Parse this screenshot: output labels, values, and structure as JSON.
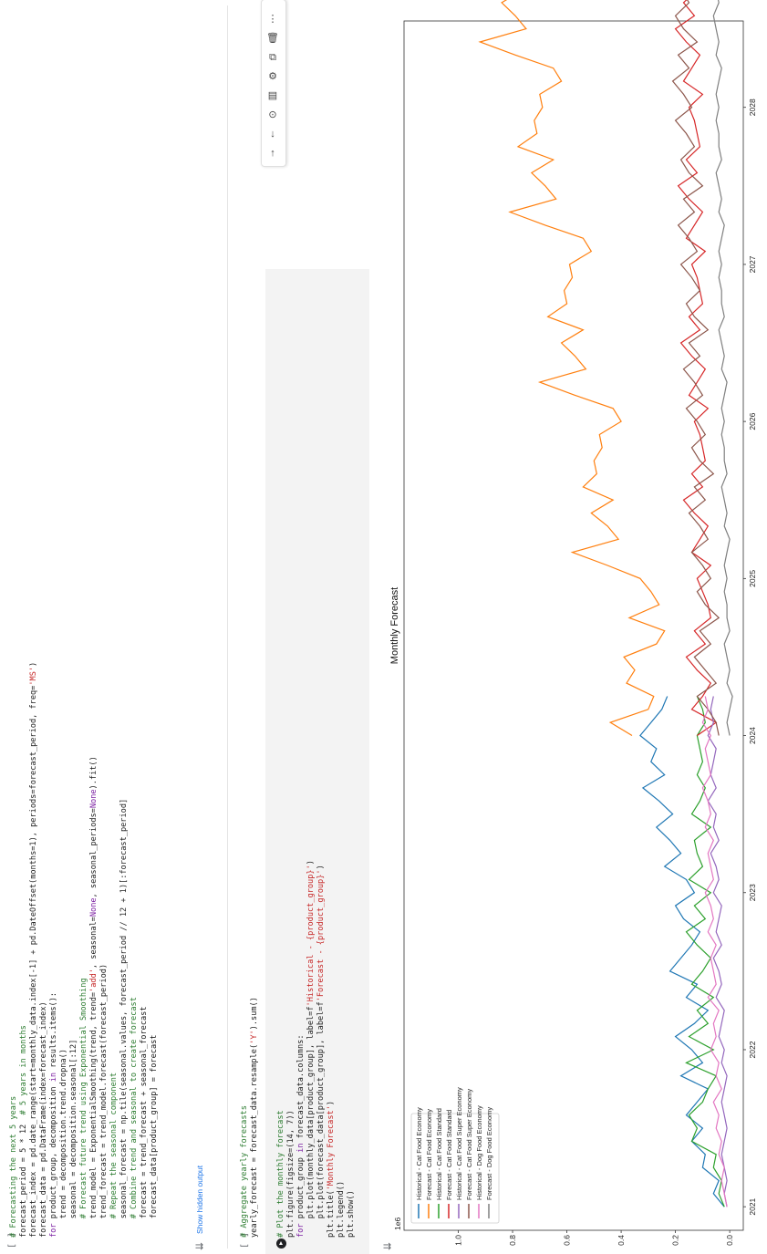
{
  "cell1": {
    "bracket": "[ ]",
    "lines": [
      [
        {
          "t": "# Forecasting the next 5 years",
          "c": "c-cmt"
        }
      ],
      [
        {
          "t": "forecast_period = 5 * 12  ",
          "c": ""
        },
        {
          "t": "# 5 years in months",
          "c": "c-cmt"
        }
      ],
      [
        {
          "t": "forecast_index = pd.date_range(start=monthly_data.index[-1] + pd.DateOffset(months=1), periods=forecast_period, freq=",
          "c": ""
        },
        {
          "t": "'MS'",
          "c": "c-str"
        },
        {
          "t": ")",
          "c": ""
        }
      ],
      [
        {
          "t": "forecast_data = pd.DataFrame(index=forecast_index)",
          "c": ""
        }
      ],
      [
        {
          "t": "for",
          "c": "c-kw"
        },
        {
          "t": " product_group, decomposition ",
          "c": ""
        },
        {
          "t": "in",
          "c": "c-kw"
        },
        {
          "t": " results.items():",
          "c": ""
        }
      ],
      [
        {
          "t": "    trend = decomposition.trend.dropna()",
          "c": ""
        }
      ],
      [
        {
          "t": "    seasonal = decomposition.seasonal[:12]",
          "c": ""
        }
      ],
      [
        {
          "t": "    # Forecast future trend using Exponential Smoothing",
          "c": "c-cmt"
        }
      ],
      [
        {
          "t": "    trend_model = ExponentialSmoothing(trend, trend=",
          "c": ""
        },
        {
          "t": "'add'",
          "c": "c-str"
        },
        {
          "t": ", seasonal=",
          "c": ""
        },
        {
          "t": "None",
          "c": "c-kw"
        },
        {
          "t": ", seasonal_periods=",
          "c": ""
        },
        {
          "t": "None",
          "c": "c-kw"
        },
        {
          "t": ").fit()",
          "c": ""
        }
      ],
      [
        {
          "t": "    trend_forecast = trend_model.forecast(forecast_period)",
          "c": ""
        }
      ],
      [
        {
          "t": "    # Repeat the seasonal component",
          "c": "c-cmt"
        }
      ],
      [
        {
          "t": "    seasonal_forecast = np.tile(seasonal.values, forecast_period // 12 + 1)[:forecast_period]",
          "c": ""
        }
      ],
      [
        {
          "t": "    # Combine trend and seasonal to create forecast",
          "c": "c-cmt"
        }
      ],
      [
        {
          "t": "    forecast = trend_forecast + seasonal_forecast",
          "c": ""
        }
      ],
      [
        {
          "t": "    forecast_data[product_group] = forecast",
          "c": ""
        }
      ]
    ],
    "show_hidden": "Show hidden output"
  },
  "cell2": {
    "bracket": "[ ]",
    "lines": [
      [
        {
          "t": "# Aggregate yearly forecasts",
          "c": "c-cmt"
        }
      ],
      [
        {
          "t": "yearly_forecast = forecast_data.resample(",
          "c": ""
        },
        {
          "t": "'Y'",
          "c": "c-str"
        },
        {
          "t": ").sum()",
          "c": ""
        }
      ]
    ]
  },
  "cell3": {
    "lines": [
      [
        {
          "t": "# Plot the monthly forecast",
          "c": "c-cmt"
        }
      ],
      [
        {
          "t": "plt.figure(figsize=(14, 7))",
          "c": ""
        }
      ],
      [
        {
          "t": "for",
          "c": "c-kw"
        },
        {
          "t": " product_group ",
          "c": ""
        },
        {
          "t": "in",
          "c": "c-kw"
        },
        {
          "t": " forecast_data.columns:",
          "c": ""
        }
      ],
      [
        {
          "t": "    plt.plot(monthly_data[product_group], label=f",
          "c": ""
        },
        {
          "t": "'Historical - {product_group}'",
          "c": "c-str"
        },
        {
          "t": ")",
          "c": ""
        }
      ],
      [
        {
          "t": "    plt.plot(forecast_data[product_group], label=f",
          "c": ""
        },
        {
          "t": "'Forecast - {product_group}'",
          "c": "c-str"
        },
        {
          "t": ")",
          "c": ""
        }
      ],
      [
        {
          "t": "plt.title(",
          "c": ""
        },
        {
          "t": "'Monthly Forecast'",
          "c": "c-str"
        },
        {
          "t": ")",
          "c": ""
        }
      ],
      [
        {
          "t": "plt.legend()",
          "c": ""
        }
      ],
      [
        {
          "t": "plt.show()",
          "c": ""
        }
      ]
    ]
  },
  "toolbar": {
    "icons": [
      "arrow-up-icon",
      "arrow-down-icon",
      "link-icon",
      "comment-icon",
      "gear-icon",
      "mirror-cell-icon",
      "delete-icon",
      "more-icon"
    ],
    "glyphs": [
      "↑",
      "↓",
      "⊙",
      "▤",
      "⚙",
      "⧉",
      "🗑",
      "⋮"
    ]
  },
  "chart_data": {
    "type": "line",
    "title": "Monthly Forecast",
    "y_offset_label": "1e6",
    "ylim": [
      -0.05,
      1.2
    ],
    "xlim": [
      2020.85,
      2028.55
    ],
    "xticks": [
      "2021",
      "2022",
      "2023",
      "2024",
      "2025",
      "2026",
      "2027",
      "2028"
    ],
    "yticks": [
      "0.0",
      "0.2",
      "0.4",
      "0.6",
      "0.8",
      "1.0"
    ],
    "legend_position": "top-left",
    "series": [
      {
        "name": "Historical - Cat Food Economy",
        "color": "#1f77b4",
        "start": 2021.0,
        "values": [
          0.02,
          0.06,
          0.04,
          0.1,
          0.09,
          0.14,
          0.1,
          0.16,
          0.12,
          0.08,
          0.18,
          0.1,
          0.14,
          0.2,
          0.13,
          0.08,
          0.16,
          0.12,
          0.22,
          0.18,
          0.14,
          0.11,
          0.17,
          0.2,
          0.13,
          0.16,
          0.24,
          0.18,
          0.22,
          0.27,
          0.21,
          0.26,
          0.32,
          0.24,
          0.29,
          0.27,
          0.33,
          0.29,
          0.25,
          0.23
        ]
      },
      {
        "name": "Forecast - Cat Food Economy",
        "color": "#ff7f0e",
        "start": 2024.0,
        "values": [
          0.36,
          0.44,
          0.3,
          0.28,
          0.38,
          0.35,
          0.39,
          0.27,
          0.24,
          0.37,
          0.26,
          0.29,
          0.33,
          0.45,
          0.58,
          0.41,
          0.45,
          0.51,
          0.43,
          0.54,
          0.49,
          0.5,
          0.47,
          0.48,
          0.4,
          0.43,
          0.57,
          0.7,
          0.53,
          0.57,
          0.62,
          0.54,
          0.67,
          0.6,
          0.61,
          0.58,
          0.59,
          0.51,
          0.54,
          0.68,
          0.81,
          0.64,
          0.68,
          0.73,
          0.65,
          0.78,
          0.71,
          0.72,
          0.69,
          0.7,
          0.62,
          0.65,
          0.79,
          0.92,
          0.75,
          0.79,
          0.84,
          0.76,
          0.89,
          0.82
        ]
      },
      {
        "name": "Historical - Cat Food Standard",
        "color": "#2ca02c",
        "start": 2021.0,
        "values": [
          0.02,
          0.04,
          0.03,
          0.06,
          0.05,
          0.14,
          0.12,
          0.15,
          0.1,
          0.08,
          0.05,
          0.16,
          0.06,
          0.15,
          0.08,
          0.12,
          0.06,
          0.14,
          0.1,
          0.07,
          0.12,
          0.16,
          0.09,
          0.13,
          0.07,
          0.15,
          0.1,
          0.12,
          0.13,
          0.07,
          0.14,
          0.11,
          0.09,
          0.12,
          0.1,
          0.11,
          0.12,
          0.09,
          0.1,
          0.12
        ]
      },
      {
        "name": "Forecast - Cat Food Standard",
        "color": "#d62728",
        "start": 2024.0,
        "values": [
          0.12,
          0.05,
          0.14,
          0.1,
          0.07,
          0.12,
          0.16,
          0.09,
          0.13,
          0.07,
          0.08,
          0.1,
          0.12,
          0.07,
          0.14,
          0.11,
          0.08,
          0.13,
          0.17,
          0.1,
          0.14,
          0.09,
          0.1,
          0.11,
          0.13,
          0.08,
          0.15,
          0.12,
          0.09,
          0.14,
          0.18,
          0.11,
          0.15,
          0.1,
          0.11,
          0.12,
          0.14,
          0.09,
          0.16,
          0.13,
          0.1,
          0.15,
          0.19,
          0.12,
          0.16,
          0.11,
          0.12,
          0.13,
          0.15,
          0.1,
          0.17,
          0.14,
          0.11,
          0.16,
          0.2,
          0.13,
          0.17,
          0.12,
          0.13,
          0.14
        ]
      },
      {
        "name": "Historical - Cat Food Super Economy",
        "color": "#9467bd",
        "start": 2021.0,
        "values": [
          0.01,
          0.02,
          0.01,
          0.02,
          0.03,
          0.02,
          0.01,
          0.02,
          0.03,
          0.02,
          0.01,
          0.03,
          0.02,
          0.04,
          0.03,
          0.02,
          0.05,
          0.03,
          0.04,
          0.06,
          0.03,
          0.05,
          0.04,
          0.03,
          0.06,
          0.04,
          0.05,
          0.07,
          0.04,
          0.06,
          0.05,
          0.08,
          0.05,
          0.07,
          0.06,
          0.05,
          0.08,
          0.06,
          0.07,
          0.06
        ]
      },
      {
        "name": "Forecast - Cat Food Super Economy",
        "color": "#8c564b",
        "start": 2024.0,
        "values": [
          0.04,
          0.05,
          0.08,
          0.12,
          0.05,
          0.09,
          0.13,
          0.07,
          0.11,
          0.04,
          0.09,
          0.12,
          0.07,
          0.1,
          0.14,
          0.08,
          0.11,
          0.15,
          0.09,
          0.13,
          0.06,
          0.11,
          0.14,
          0.09,
          0.12,
          0.16,
          0.1,
          0.13,
          0.17,
          0.11,
          0.15,
          0.08,
          0.13,
          0.16,
          0.11,
          0.14,
          0.18,
          0.12,
          0.15,
          0.19,
          0.13,
          0.17,
          0.1,
          0.15,
          0.18,
          0.13,
          0.16,
          0.2,
          0.14,
          0.17,
          0.21,
          0.15,
          0.19,
          0.12,
          0.17,
          0.2,
          0.15,
          0.18,
          0.22,
          0.18
        ]
      },
      {
        "name": "Historical - Dog Food Economy",
        "color": "#e377c2",
        "start": 2021.0,
        "values": [
          0.01,
          0.02,
          0.03,
          0.02,
          0.04,
          0.03,
          0.05,
          0.04,
          0.06,
          0.03,
          0.05,
          0.04,
          0.07,
          0.05,
          0.06,
          0.04,
          0.08,
          0.05,
          0.06,
          0.07,
          0.05,
          0.08,
          0.06,
          0.07,
          0.09,
          0.06,
          0.07,
          0.08,
          0.06,
          0.09,
          0.07,
          0.08,
          0.1,
          0.07,
          0.08,
          0.09,
          0.07,
          0.1,
          0.08,
          0.09
        ]
      },
      {
        "name": "Forecast - Dog Food Economy",
        "color": "#7f7f7f",
        "start": 2024.0,
        "values": [
          0.0,
          0.01,
          0.0,
          -0.01,
          0.01,
          0.0,
          0.01,
          0.02,
          0.0,
          0.01,
          0.01,
          0.02,
          0.01,
          0.02,
          0.01,
          0.0,
          0.02,
          0.01,
          0.02,
          0.03,
          0.01,
          0.02,
          0.02,
          0.03,
          0.02,
          0.03,
          0.02,
          0.01,
          0.03,
          0.02,
          0.03,
          0.04,
          0.02,
          0.03,
          0.03,
          0.04,
          0.03,
          0.04,
          0.03,
          0.02,
          0.04,
          0.03,
          0.04,
          0.05,
          0.03,
          0.04,
          0.04,
          0.05,
          0.04,
          0.05,
          0.04,
          0.03,
          0.05,
          0.04,
          0.05,
          0.06,
          0.04,
          0.05,
          0.05,
          0.06
        ]
      }
    ]
  }
}
